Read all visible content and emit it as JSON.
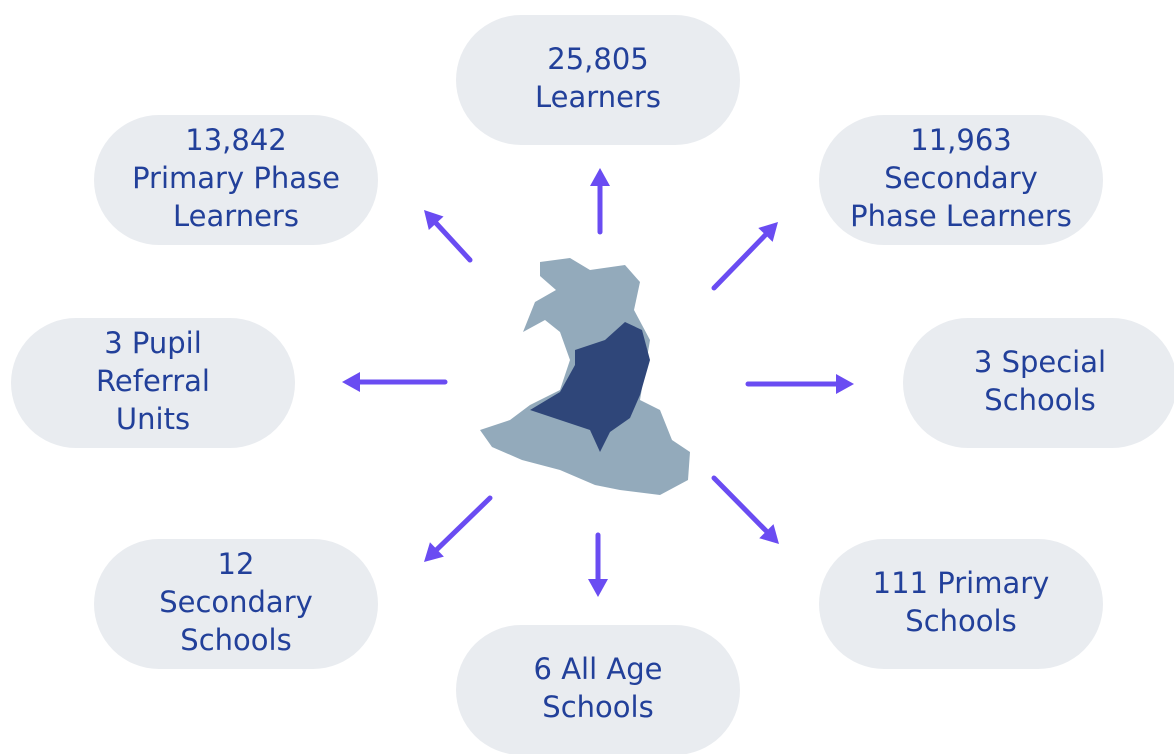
{
  "nodes": [
    {
      "lines": [
        "25,805",
        "Learners"
      ]
    },
    {
      "lines": [
        "13,842",
        "Primary Phase",
        "Learners"
      ]
    },
    {
      "lines": [
        "11,963",
        "Secondary",
        "Phase Learners"
      ]
    },
    {
      "lines": [
        "3 Pupil",
        "Referral",
        "Units"
      ]
    },
    {
      "lines": [
        "3 Special",
        "Schools"
      ]
    },
    {
      "lines": [
        "12",
        "Secondary",
        "Schools"
      ]
    },
    {
      "lines": [
        "111 Primary",
        "Schools"
      ]
    },
    {
      "lines": [
        "6 All Age",
        "Schools"
      ]
    }
  ]
}
